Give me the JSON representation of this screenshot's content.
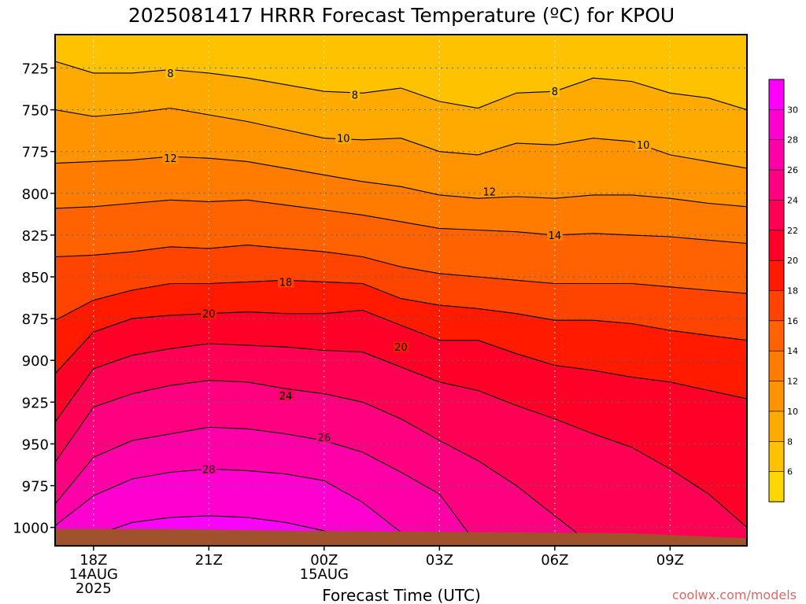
{
  "chart_data": {
    "type": "contour",
    "title": "2025081417 HRRR Forecast Temperature (ºC) for KPOU",
    "xlabel": "Forecast Time (UTC)",
    "ylabel": "",
    "credit": "coolwx.com/models",
    "x_ticks": [
      {
        "h": 1,
        "lines": [
          "18Z",
          "14AUG",
          "2025"
        ]
      },
      {
        "h": 4,
        "lines": [
          "21Z"
        ]
      },
      {
        "h": 7,
        "lines": [
          "00Z",
          "15AUG"
        ]
      },
      {
        "h": 10,
        "lines": [
          "03Z"
        ]
      },
      {
        "h": 13,
        "lines": [
          "06Z"
        ]
      },
      {
        "h": 16,
        "lines": [
          "09Z"
        ]
      }
    ],
    "xlim_hours": [
      0,
      18
    ],
    "y_ticks": [
      725,
      750,
      775,
      800,
      825,
      850,
      875,
      900,
      925,
      950,
      975,
      1000
    ],
    "ylim_hPa": [
      705,
      1011
    ],
    "hours": [
      0,
      1,
      2,
      3,
      4,
      5,
      6,
      7,
      8,
      9,
      10,
      11,
      12,
      13,
      14,
      15,
      16,
      17,
      18
    ],
    "isotherms_hPa": [
      {
        "t": 8,
        "p": [
          721,
          728,
          728,
          726,
          728,
          731,
          735,
          739,
          740,
          737,
          745,
          749,
          740,
          739,
          731,
          733,
          740,
          743,
          750
        ]
      },
      {
        "t": 10,
        "p": [
          750,
          754,
          752,
          749,
          753,
          757,
          762,
          767,
          768,
          767,
          775,
          777,
          770,
          771,
          767,
          769,
          777,
          781,
          785
        ]
      },
      {
        "t": 12,
        "p": [
          782,
          781,
          780,
          778,
          779,
          781,
          785,
          789,
          793,
          796,
          801,
          803,
          802,
          803,
          801,
          801,
          803,
          806,
          808
        ]
      },
      {
        "t": 14,
        "p": [
          809,
          808,
          806,
          804,
          805,
          804,
          807,
          810,
          813,
          817,
          821,
          822,
          823,
          825,
          824,
          825,
          826,
          828,
          830
        ]
      },
      {
        "t": 16,
        "p": [
          838,
          837,
          835,
          832,
          833,
          831,
          833,
          835,
          838,
          844,
          848,
          850,
          852,
          854,
          854,
          854,
          856,
          858,
          860
        ]
      },
      {
        "t": 18,
        "p": [
          876,
          864,
          858,
          854,
          854,
          853,
          852,
          853,
          854,
          863,
          867,
          869,
          872,
          876,
          876,
          878,
          882,
          885,
          888
        ]
      },
      {
        "t": 20,
        "p": [
          908,
          883,
          875,
          873,
          872,
          871,
          872,
          872,
          870,
          879,
          888,
          888,
          896,
          903,
          906,
          910,
          913,
          918,
          923
        ]
      },
      {
        "t": 22,
        "p": [
          937,
          905,
          897,
          893,
          890,
          891,
          892,
          894,
          895,
          904,
          913,
          918,
          927,
          935,
          944,
          952,
          965,
          980,
          1000
        ]
      },
      {
        "t": 24,
        "p": [
          961,
          928,
          920,
          915,
          912,
          913,
          917,
          920,
          925,
          935,
          948,
          960,
          975,
          993,
          1011,
          null,
          null,
          null,
          null
        ]
      },
      {
        "t": 26,
        "p": [
          986,
          958,
          948,
          944,
          940,
          941,
          944,
          948,
          955,
          967,
          980,
          1011,
          null,
          null,
          null,
          null,
          null,
          null,
          null
        ]
      },
      {
        "t": 28,
        "p": [
          999,
          981,
          971,
          967,
          965,
          966,
          968,
          972,
          985,
          1003,
          null,
          null,
          null,
          null,
          null,
          null,
          null,
          null,
          null
        ]
      },
      {
        "t": 30,
        "p": [
          1011,
          1005,
          997,
          994,
          993,
          994,
          997,
          1002,
          null,
          null,
          null,
          null,
          null,
          null,
          null,
          null,
          null,
          null,
          null
        ]
      }
    ],
    "contour_labels": [
      {
        "t": 8,
        "h": 3.0,
        "p": 728
      },
      {
        "t": 8,
        "h": 7.8,
        "p": 741
      },
      {
        "t": 8,
        "h": 13.0,
        "p": 739
      },
      {
        "t": 10,
        "h": 7.5,
        "p": 767
      },
      {
        "t": 10,
        "h": 15.3,
        "p": 771
      },
      {
        "t": 12,
        "h": 3.0,
        "p": 779
      },
      {
        "t": 12,
        "h": 11.3,
        "p": 799
      },
      {
        "t": 14,
        "h": 13.0,
        "p": 825
      },
      {
        "t": 18,
        "h": 6.0,
        "p": 853
      },
      {
        "t": 20,
        "h": 4.0,
        "p": 872
      },
      {
        "t": 20,
        "h": 9.0,
        "p": 892
      },
      {
        "t": 24,
        "h": 6.0,
        "p": 921
      },
      {
        "t": 26,
        "h": 7.0,
        "p": 946
      },
      {
        "t": 28,
        "h": 4.0,
        "p": 965
      }
    ],
    "colorbar": {
      "levels": [
        6,
        8,
        10,
        12,
        14,
        16,
        18,
        20,
        22,
        24,
        26,
        28,
        30
      ],
      "colors": [
        "#ffd700",
        "#ffc200",
        "#ffaa00",
        "#ff9400",
        "#ff7c00",
        "#ff6200",
        "#ff4400",
        "#ff1a00",
        "#ff0028",
        "#ff0055",
        "#ff0080",
        "#ff00a8",
        "#ff00d0",
        "#ff00ff"
      ]
    },
    "ground_color": "#a0522d",
    "grid": true
  }
}
